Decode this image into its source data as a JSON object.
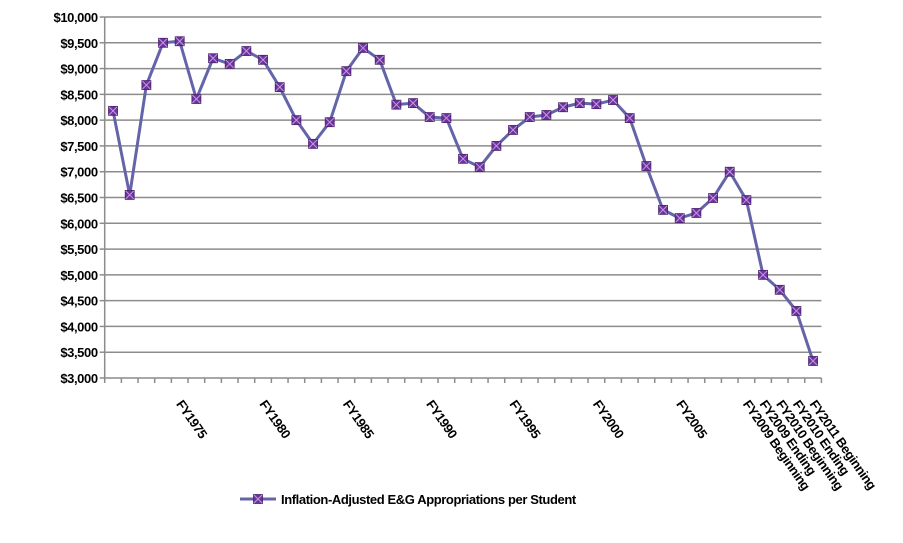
{
  "chart_data": {
    "type": "line",
    "categories": [
      null,
      null,
      null,
      null,
      "FY1975",
      null,
      null,
      null,
      null,
      "FY1980",
      null,
      null,
      null,
      null,
      "FY1985",
      null,
      null,
      null,
      null,
      "FY1990",
      null,
      null,
      null,
      null,
      "FY1995",
      null,
      null,
      null,
      null,
      "FY2000",
      null,
      null,
      null,
      null,
      "FY2005",
      null,
      null,
      null,
      "FY2009 Beginning",
      "FY2009 Ending",
      "FY2010 Beginning",
      "FY2010 Ending",
      "FY2011 Beginning"
    ],
    "series": [
      {
        "name": "Inflation-Adjusted E&G Appropriations per Student",
        "color": "#6464a8",
        "marker_color": "#7030a0",
        "values": [
          8180,
          6550,
          8680,
          9500,
          9530,
          8410,
          9200,
          9090,
          9340,
          9170,
          8640,
          8000,
          7540,
          7960,
          8950,
          9400,
          9170,
          8300,
          8330,
          8060,
          8040,
          7250,
          7090,
          7500,
          7810,
          8060,
          8100,
          8250,
          8330,
          8310,
          8390,
          8040,
          7110,
          6260,
          6100,
          6200,
          6490,
          7000,
          6450,
          5000,
          4710,
          4300,
          3330
        ]
      }
    ],
    "ylim": [
      3000,
      10000
    ],
    "yticks": [
      {
        "value": 3000,
        "label": "$3,000"
      },
      {
        "value": 3500,
        "label": "$3,500"
      },
      {
        "value": 4000,
        "label": "$4,000"
      },
      {
        "value": 4500,
        "label": "$4,500"
      },
      {
        "value": 5000,
        "label": "$5,000"
      },
      {
        "value": 5500,
        "label": "$5,500"
      },
      {
        "value": 6000,
        "label": "$6,000"
      },
      {
        "value": 6500,
        "label": "$6,500"
      },
      {
        "value": 7000,
        "label": "$7,000"
      },
      {
        "value": 7500,
        "label": "$7,500"
      },
      {
        "value": 8000,
        "label": "$8,000"
      },
      {
        "value": 8500,
        "label": "$8,500"
      },
      {
        "value": 9000,
        "label": "$9,000"
      },
      {
        "value": 9500,
        "label": "$9,500"
      },
      {
        "value": 10000,
        "label": "$10,000"
      }
    ],
    "grid": true,
    "legend": "bottom"
  }
}
